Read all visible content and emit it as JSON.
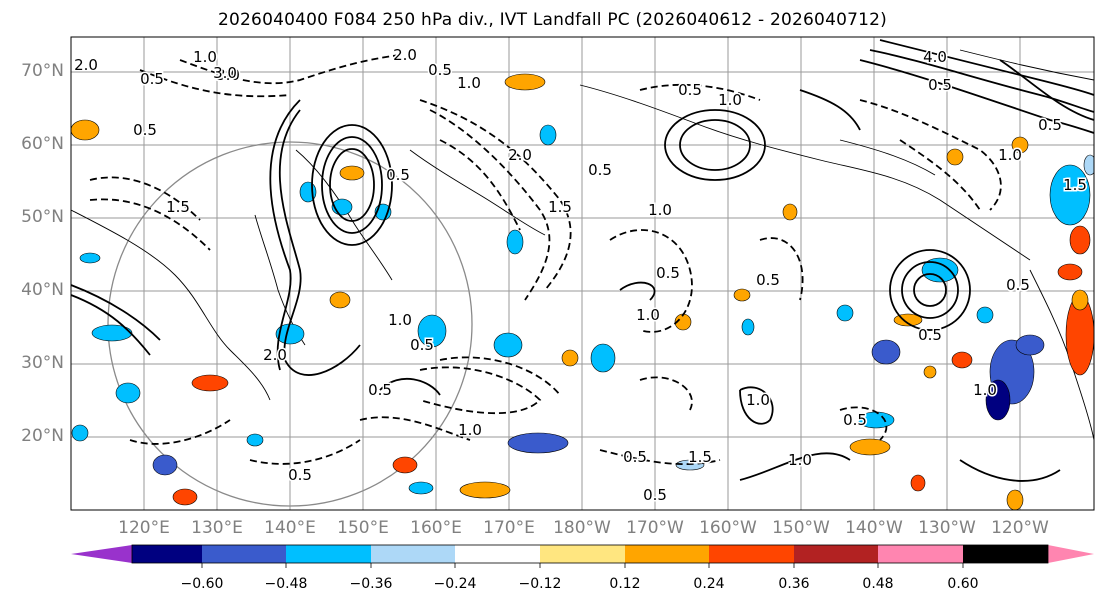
{
  "title": "2026040400 F084 250 hPa div., IVT Landfall PC (2026040612 - 2026040712)",
  "lat_labels": [
    "70°N",
    "60°N",
    "50°N",
    "40°N",
    "30°N",
    "20°N"
  ],
  "lon_labels": [
    "120°E",
    "130°E",
    "140°E",
    "150°E",
    "160°E",
    "170°E",
    "180°W",
    "170°W",
    "160°W",
    "150°W",
    "140°W",
    "130°W",
    "120°W"
  ],
  "colorbar": {
    "colors": [
      "#9932cc",
      "#000080",
      "#3a5bcc",
      "#00bfff",
      "#add8f7",
      "#ffffff",
      "#ffe680",
      "#ffa500",
      "#ff4500",
      "#b22222",
      "#ff85b0"
    ],
    "tick_labels": [
      "−0.60",
      "−0.48",
      "−0.36",
      "−0.24",
      "−0.12",
      "0.12",
      "0.24",
      "0.36",
      "0.48",
      "0.60"
    ]
  },
  "contour_labels": [
    "2.0",
    "3.0",
    "0.5",
    "1.5",
    "0.5",
    "1.0",
    "2.0",
    "0.5",
    "1.0",
    "3.0",
    "0.5",
    "1.0",
    "4.0",
    "0.5",
    "0.5",
    "1.5",
    "0.5",
    "1.0",
    "0.5",
    "1.0",
    "0.5",
    "2.0",
    "0.5",
    "1.5",
    "1.0",
    "0.5",
    "0.5",
    "1.0",
    "0.5",
    "1.0",
    "0.5",
    "1.5",
    "0.5",
    "1.0",
    "0.5",
    "1.0",
    "0.5",
    "2.0",
    "0.5",
    "1.0"
  ]
}
